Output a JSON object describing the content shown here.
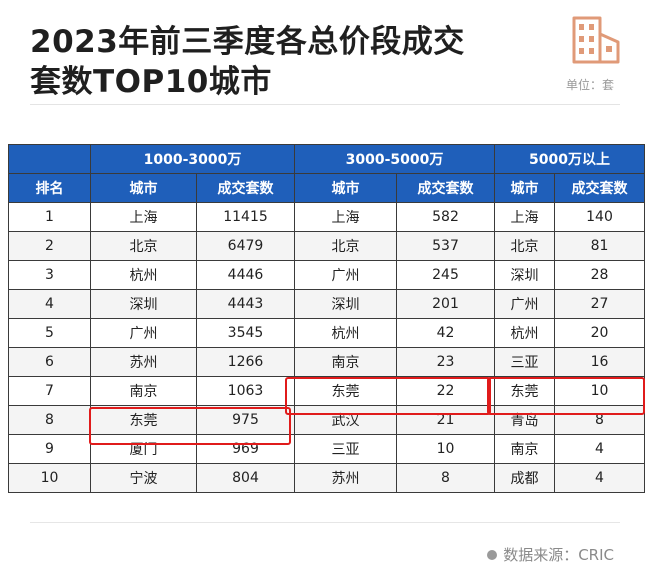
{
  "title": {
    "line1": "2023年前三季度各总价段成交",
    "line2": "套数TOP10城市"
  },
  "unit_label": "单位：套",
  "source_label": "数据来源：CRIC",
  "colors": {
    "header_bg": "#1f5fba",
    "highlight": "#e01b1b",
    "logo": "#e09a78"
  },
  "logo_icon": "building-icon",
  "table": {
    "group_headers": [
      "1000-3000万",
      "3000-5000万",
      "5000万以上"
    ],
    "rank_header": "排名",
    "city_header": "城市",
    "count_header": "成交套数",
    "rows": [
      {
        "rank": "1",
        "c1": "上海",
        "v1": "11415",
        "c2": "上海",
        "v2": "582",
        "c3": "上海",
        "v3": "140"
      },
      {
        "rank": "2",
        "c1": "北京",
        "v1": "6479",
        "c2": "北京",
        "v2": "537",
        "c3": "北京",
        "v3": "81"
      },
      {
        "rank": "3",
        "c1": "杭州",
        "v1": "4446",
        "c2": "广州",
        "v2": "245",
        "c3": "深圳",
        "v3": "28"
      },
      {
        "rank": "4",
        "c1": "深圳",
        "v1": "4443",
        "c2": "深圳",
        "v2": "201",
        "c3": "广州",
        "v3": "27"
      },
      {
        "rank": "5",
        "c1": "广州",
        "v1": "3545",
        "c2": "杭州",
        "v2": "42",
        "c3": "杭州",
        "v3": "20"
      },
      {
        "rank": "6",
        "c1": "苏州",
        "v1": "1266",
        "c2": "南京",
        "v2": "23",
        "c3": "三亚",
        "v3": "16"
      },
      {
        "rank": "7",
        "c1": "南京",
        "v1": "1063",
        "c2": "东莞",
        "v2": "22",
        "c3": "东莞",
        "v3": "10"
      },
      {
        "rank": "8",
        "c1": "东莞",
        "v1": "975",
        "c2": "武汉",
        "v2": "21",
        "c3": "青岛",
        "v3": "8"
      },
      {
        "rank": "9",
        "c1": "厦门",
        "v1": "969",
        "c2": "三亚",
        "v2": "10",
        "c3": "南京",
        "v3": "4"
      },
      {
        "rank": "10",
        "c1": "宁波",
        "v1": "804",
        "c2": "苏州",
        "v2": "8",
        "c3": "成都",
        "v3": "4"
      }
    ]
  }
}
